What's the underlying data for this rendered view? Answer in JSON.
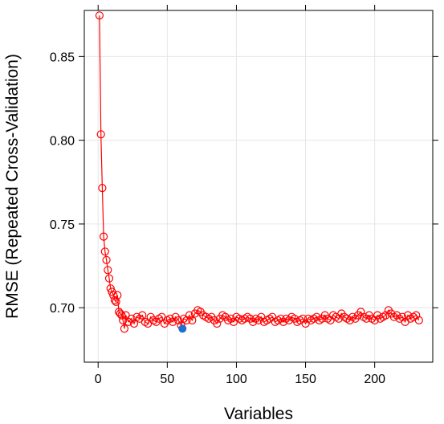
{
  "chart_data": {
    "type": "line",
    "title": "",
    "xlabel": "Variables",
    "ylabel": "RMSE (Repeated Cross-Validation)",
    "xlim": [
      -10,
      242
    ],
    "ylim": [
      0.6675,
      0.8775
    ],
    "x_ticks": [
      0,
      50,
      100,
      150,
      200
    ],
    "x_tick_labels": [
      "0",
      "50",
      "100",
      "150",
      "200"
    ],
    "y_ticks": [
      0.7,
      0.75,
      0.8,
      0.85
    ],
    "y_tick_labels": [
      "0.70",
      "0.75",
      "0.80",
      "0.85"
    ],
    "grid": true,
    "series": [
      {
        "color": "#ff0000",
        "marker": "open-circle",
        "x": [
          1,
          2,
          3,
          4,
          5,
          6,
          7,
          8,
          9,
          10,
          11,
          12,
          13,
          14,
          15,
          16,
          17,
          18,
          19,
          20,
          22,
          24,
          26,
          28,
          30,
          32,
          34,
          36,
          38,
          40,
          42,
          44,
          46,
          48,
          50,
          52,
          54,
          56,
          58,
          60,
          62,
          64,
          66,
          68,
          70,
          72,
          74,
          76,
          78,
          80,
          82,
          84,
          86,
          88,
          90,
          92,
          94,
          96,
          98,
          100,
          102,
          104,
          106,
          108,
          110,
          112,
          114,
          116,
          118,
          120,
          122,
          124,
          126,
          128,
          130,
          132,
          134,
          136,
          138,
          140,
          142,
          144,
          146,
          148,
          150,
          152,
          154,
          156,
          158,
          160,
          162,
          164,
          166,
          168,
          170,
          172,
          174,
          176,
          178,
          180,
          182,
          184,
          186,
          188,
          190,
          192,
          194,
          196,
          198,
          200,
          202,
          204,
          206,
          208,
          210,
          212,
          214,
          216,
          218,
          220,
          222,
          224,
          226,
          228,
          230,
          232
        ],
        "values": [
          0.8745,
          0.8035,
          0.7715,
          0.7425,
          0.7335,
          0.7285,
          0.7225,
          0.7175,
          0.7115,
          0.7095,
          0.7075,
          0.7045,
          0.7035,
          0.7075,
          0.6975,
          0.6965,
          0.6955,
          0.6925,
          0.6875,
          0.6955,
          0.6915,
          0.6935,
          0.6905,
          0.6945,
          0.6935,
          0.6955,
          0.6915,
          0.6905,
          0.6945,
          0.6925,
          0.6915,
          0.6935,
          0.6945,
          0.6905,
          0.6925,
          0.6935,
          0.6915,
          0.6945,
          0.6925,
          0.6895,
          0.6935,
          0.6925,
          0.6955,
          0.6925,
          0.6965,
          0.6985,
          0.6975,
          0.6955,
          0.6945,
          0.6935,
          0.6945,
          0.6925,
          0.6905,
          0.6935,
          0.6955,
          0.6945,
          0.6925,
          0.6935,
          0.6915,
          0.6945,
          0.6935,
          0.6925,
          0.6935,
          0.6945,
          0.6935,
          0.6915,
          0.6935,
          0.6925,
          0.6945,
          0.6915,
          0.6925,
          0.6935,
          0.6945,
          0.6915,
          0.6925,
          0.6935,
          0.6915,
          0.6935,
          0.6925,
          0.6945,
          0.6935,
          0.6915,
          0.6925,
          0.6935,
          0.6905,
          0.6935,
          0.6925,
          0.6935,
          0.6945,
          0.6925,
          0.6935,
          0.6955,
          0.6935,
          0.6925,
          0.6955,
          0.6945,
          0.6935,
          0.6965,
          0.6945,
          0.6935,
          0.6925,
          0.6945,
          0.6935,
          0.6955,
          0.6975,
          0.6945,
          0.6935,
          0.6955,
          0.6935,
          0.6925,
          0.6955,
          0.6935,
          0.6945,
          0.6955,
          0.6985,
          0.6965,
          0.6945,
          0.6955,
          0.6935,
          0.6945,
          0.6915,
          0.6955,
          0.6935,
          0.6945,
          0.6955,
          0.6925
        ]
      }
    ],
    "highlight_point": {
      "x": 61,
      "y": 0.6875,
      "color": "#1f6fcf"
    }
  }
}
